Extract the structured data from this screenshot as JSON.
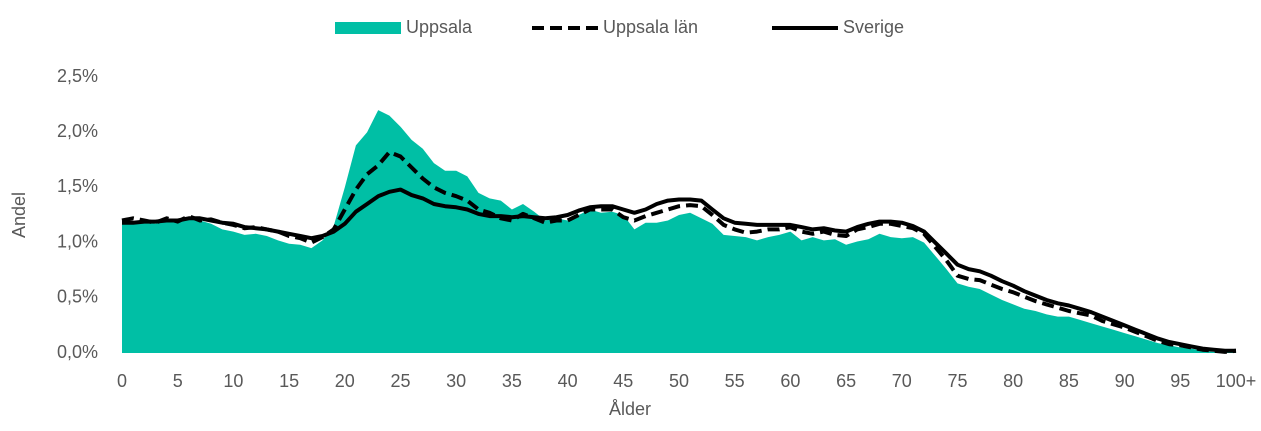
{
  "chart_data": {
    "type": "line",
    "y_label": "Andel",
    "x_label": "Ålder",
    "categories": [
      "0",
      null,
      null,
      null,
      null,
      "5",
      null,
      null,
      null,
      null,
      "10",
      null,
      null,
      null,
      null,
      "15",
      null,
      null,
      null,
      null,
      "20",
      null,
      null,
      null,
      null,
      "25",
      null,
      null,
      null,
      null,
      "30",
      null,
      null,
      null,
      null,
      "35",
      null,
      null,
      null,
      null,
      "40",
      null,
      null,
      null,
      null,
      "45",
      null,
      null,
      null,
      null,
      "50",
      null,
      null,
      null,
      null,
      "55",
      null,
      null,
      null,
      null,
      "60",
      null,
      null,
      null,
      null,
      "65",
      null,
      null,
      null,
      null,
      "70",
      null,
      null,
      null,
      null,
      "75",
      null,
      null,
      null,
      null,
      "80",
      null,
      null,
      null,
      null,
      "85",
      null,
      null,
      null,
      null,
      "90",
      null,
      null,
      null,
      null,
      "95",
      null,
      null,
      null,
      null,
      "100+"
    ],
    "ylim": [
      0,
      2.5
    ],
    "yticks": [
      {
        "value": 0,
        "label": "0,0%"
      },
      {
        "value": 0.5,
        "label": "0,5%"
      },
      {
        "value": 1,
        "label": "1,0%"
      },
      {
        "value": 1.5,
        "label": "1,5%"
      },
      {
        "value": 2,
        "label": "2,0%"
      },
      {
        "value": 2.5,
        "label": "2,5%"
      }
    ],
    "legend": "top",
    "series": [
      {
        "name": "Uppsala",
        "type": "area",
        "color": "#00bfa5",
        "values": [
          1.2,
          1.18,
          1.19,
          1.17,
          1.2,
          1.18,
          1.22,
          1.2,
          1.17,
          1.12,
          1.1,
          1.07,
          1.08,
          1.06,
          1.02,
          0.99,
          0.98,
          0.95,
          1.02,
          1.15,
          1.5,
          1.88,
          2.0,
          2.2,
          2.15,
          2.05,
          1.93,
          1.85,
          1.72,
          1.65,
          1.65,
          1.6,
          1.45,
          1.4,
          1.38,
          1.3,
          1.35,
          1.28,
          1.2,
          1.22,
          1.2,
          1.25,
          1.3,
          1.27,
          1.28,
          1.25,
          1.12,
          1.18,
          1.18,
          1.2,
          1.25,
          1.27,
          1.22,
          1.17,
          1.07,
          1.06,
          1.05,
          1.02,
          1.05,
          1.07,
          1.1,
          1.02,
          1.05,
          1.02,
          1.03,
          0.98,
          1.01,
          1.03,
          1.08,
          1.05,
          1.04,
          1.05,
          1.0,
          0.88,
          0.76,
          0.63,
          0.6,
          0.58,
          0.53,
          0.48,
          0.44,
          0.4,
          0.38,
          0.35,
          0.33,
          0.33,
          0.3,
          0.27,
          0.24,
          0.21,
          0.18,
          0.15,
          0.12,
          0.09,
          0.07,
          0.05,
          0.04,
          0.02,
          0.01,
          0.01,
          0.02
        ]
      },
      {
        "name": "Uppsala län",
        "type": "line",
        "dashed": true,
        "color": "#000000",
        "values": [
          1.2,
          1.22,
          1.2,
          1.18,
          1.22,
          1.19,
          1.24,
          1.2,
          1.21,
          1.18,
          1.16,
          1.13,
          1.14,
          1.12,
          1.1,
          1.06,
          1.04,
          1.0,
          1.05,
          1.12,
          1.3,
          1.48,
          1.62,
          1.7,
          1.82,
          1.78,
          1.68,
          1.58,
          1.5,
          1.45,
          1.42,
          1.38,
          1.3,
          1.27,
          1.22,
          1.2,
          1.26,
          1.22,
          1.18,
          1.2,
          1.2,
          1.25,
          1.3,
          1.3,
          1.3,
          1.23,
          1.2,
          1.24,
          1.27,
          1.3,
          1.33,
          1.34,
          1.33,
          1.25,
          1.16,
          1.12,
          1.09,
          1.1,
          1.12,
          1.12,
          1.14,
          1.1,
          1.08,
          1.1,
          1.07,
          1.06,
          1.12,
          1.14,
          1.17,
          1.17,
          1.15,
          1.13,
          1.08,
          0.96,
          0.84,
          0.7,
          0.67,
          0.66,
          0.62,
          0.58,
          0.55,
          0.51,
          0.47,
          0.44,
          0.41,
          0.38,
          0.36,
          0.34,
          0.29,
          0.26,
          0.23,
          0.19,
          0.15,
          0.11,
          0.08,
          0.07,
          0.05,
          0.03,
          0.02,
          0.01,
          0.02
        ]
      },
      {
        "name": "Sverige",
        "type": "line",
        "dashed": false,
        "color": "#000000",
        "values": [
          1.18,
          1.18,
          1.19,
          1.19,
          1.2,
          1.2,
          1.22,
          1.22,
          1.2,
          1.18,
          1.17,
          1.14,
          1.13,
          1.12,
          1.1,
          1.08,
          1.06,
          1.04,
          1.06,
          1.1,
          1.17,
          1.28,
          1.35,
          1.42,
          1.46,
          1.48,
          1.43,
          1.4,
          1.35,
          1.33,
          1.32,
          1.3,
          1.26,
          1.24,
          1.24,
          1.23,
          1.24,
          1.23,
          1.22,
          1.23,
          1.25,
          1.29,
          1.32,
          1.33,
          1.33,
          1.3,
          1.27,
          1.3,
          1.35,
          1.38,
          1.39,
          1.39,
          1.38,
          1.3,
          1.22,
          1.18,
          1.17,
          1.16,
          1.16,
          1.16,
          1.16,
          1.14,
          1.12,
          1.13,
          1.11,
          1.1,
          1.14,
          1.17,
          1.19,
          1.19,
          1.18,
          1.15,
          1.1,
          1.0,
          0.9,
          0.8,
          0.76,
          0.74,
          0.7,
          0.65,
          0.61,
          0.56,
          0.52,
          0.48,
          0.45,
          0.43,
          0.4,
          0.37,
          0.33,
          0.29,
          0.25,
          0.21,
          0.17,
          0.13,
          0.1,
          0.08,
          0.06,
          0.04,
          0.03,
          0.02,
          0.02
        ]
      }
    ]
  }
}
